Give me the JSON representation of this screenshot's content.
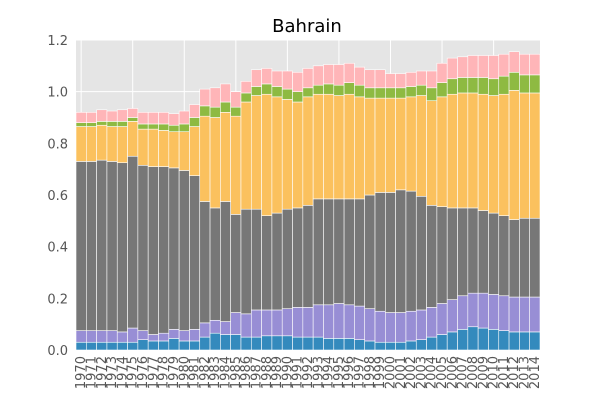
{
  "chart_data": {
    "type": "bar",
    "stacked": true,
    "title": "Bahrain",
    "xlabel": "",
    "ylabel": "",
    "ylim": [
      0,
      1.2
    ],
    "yticks": [
      "0.0",
      "0.2",
      "0.4",
      "0.6",
      "0.8",
      "1.0",
      "1.2"
    ],
    "grid": true,
    "legend": "none",
    "categories": [
      "1970",
      "1971",
      "1972",
      "1973",
      "1974",
      "1975",
      "1976",
      "1977",
      "1978",
      "1979",
      "1980",
      "1981",
      "1982",
      "1983",
      "1984",
      "1985",
      "1986",
      "1987",
      "1988",
      "1989",
      "1990",
      "1991",
      "1992",
      "1993",
      "1994",
      "1995",
      "1996",
      "1997",
      "1998",
      "1999",
      "2000",
      "2001",
      "2002",
      "2003",
      "2004",
      "2005",
      "2006",
      "2007",
      "2008",
      "2009",
      "2010",
      "2011",
      "2012",
      "2013",
      "2014"
    ],
    "series": [
      {
        "color": "#348abd",
        "values": [
          0.03,
          0.03,
          0.03,
          0.03,
          0.03,
          0.03,
          0.04,
          0.035,
          0.035,
          0.045,
          0.035,
          0.035,
          0.05,
          0.065,
          0.06,
          0.06,
          0.05,
          0.05,
          0.055,
          0.055,
          0.055,
          0.05,
          0.05,
          0.05,
          0.045,
          0.045,
          0.045,
          0.04,
          0.035,
          0.03,
          0.03,
          0.03,
          0.035,
          0.04,
          0.05,
          0.06,
          0.07,
          0.08,
          0.09,
          0.085,
          0.08,
          0.075,
          0.07,
          0.07,
          0.07
        ]
      },
      {
        "color": "#988ed5",
        "values": [
          0.045,
          0.045,
          0.045,
          0.045,
          0.04,
          0.055,
          0.035,
          0.025,
          0.03,
          0.035,
          0.04,
          0.045,
          0.055,
          0.05,
          0.05,
          0.085,
          0.09,
          0.105,
          0.1,
          0.1,
          0.105,
          0.115,
          0.115,
          0.125,
          0.13,
          0.135,
          0.13,
          0.13,
          0.125,
          0.12,
          0.115,
          0.115,
          0.115,
          0.115,
          0.115,
          0.12,
          0.125,
          0.13,
          0.13,
          0.135,
          0.135,
          0.135,
          0.135,
          0.135,
          0.135
        ]
      },
      {
        "color": "#777777",
        "values": [
          0.655,
          0.655,
          0.66,
          0.655,
          0.655,
          0.665,
          0.64,
          0.65,
          0.645,
          0.625,
          0.62,
          0.595,
          0.47,
          0.435,
          0.465,
          0.38,
          0.405,
          0.39,
          0.365,
          0.375,
          0.385,
          0.385,
          0.395,
          0.41,
          0.41,
          0.405,
          0.41,
          0.415,
          0.44,
          0.46,
          0.465,
          0.475,
          0.465,
          0.44,
          0.395,
          0.375,
          0.355,
          0.34,
          0.33,
          0.32,
          0.315,
          0.31,
          0.3,
          0.305,
          0.305
        ]
      },
      {
        "color": "#fbc15e",
        "values": [
          0.135,
          0.135,
          0.135,
          0.135,
          0.14,
          0.135,
          0.14,
          0.145,
          0.14,
          0.14,
          0.15,
          0.19,
          0.33,
          0.35,
          0.345,
          0.38,
          0.415,
          0.44,
          0.47,
          0.45,
          0.425,
          0.41,
          0.42,
          0.405,
          0.405,
          0.4,
          0.405,
          0.395,
          0.375,
          0.365,
          0.365,
          0.355,
          0.365,
          0.39,
          0.405,
          0.425,
          0.44,
          0.445,
          0.445,
          0.45,
          0.455,
          0.47,
          0.5,
          0.485,
          0.485
        ]
      },
      {
        "color": "#8eba42",
        "values": [
          0.015,
          0.015,
          0.015,
          0.02,
          0.02,
          0.015,
          0.02,
          0.02,
          0.025,
          0.025,
          0.03,
          0.035,
          0.04,
          0.04,
          0.04,
          0.035,
          0.035,
          0.035,
          0.04,
          0.04,
          0.04,
          0.04,
          0.035,
          0.035,
          0.04,
          0.04,
          0.045,
          0.045,
          0.04,
          0.04,
          0.04,
          0.04,
          0.04,
          0.04,
          0.05,
          0.055,
          0.06,
          0.06,
          0.06,
          0.065,
          0.065,
          0.07,
          0.07,
          0.07,
          0.07
        ]
      },
      {
        "color": "#ffb5b8",
        "values": [
          0.04,
          0.04,
          0.045,
          0.04,
          0.045,
          0.035,
          0.045,
          0.045,
          0.045,
          0.045,
          0.05,
          0.05,
          0.065,
          0.075,
          0.07,
          0.06,
          0.045,
          0.065,
          0.06,
          0.06,
          0.07,
          0.075,
          0.075,
          0.075,
          0.075,
          0.08,
          0.075,
          0.07,
          0.07,
          0.07,
          0.055,
          0.055,
          0.055,
          0.055,
          0.065,
          0.075,
          0.08,
          0.08,
          0.085,
          0.085,
          0.09,
          0.085,
          0.08,
          0.08,
          0.08
        ]
      }
    ]
  }
}
